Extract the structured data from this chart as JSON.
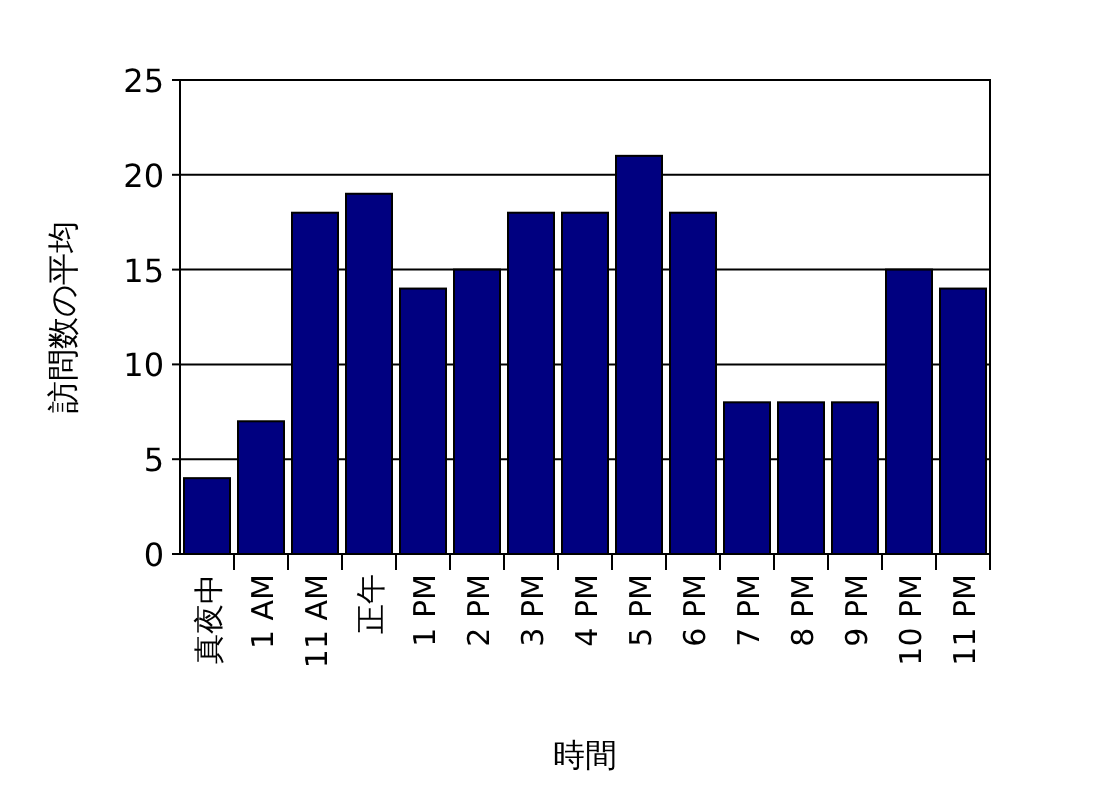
{
  "chart_data": {
    "type": "bar",
    "xlabel": "時間",
    "ylabel": "訪問数の平均",
    "categories": [
      "真夜中",
      "1 AM",
      "11 AM",
      "正午",
      "1 PM",
      "2 PM",
      "3 PM",
      "4 PM",
      "5 PM",
      "6 PM",
      "7 PM",
      "8 PM",
      "9 PM",
      "10 PM",
      "11 PM"
    ],
    "values": [
      4,
      7,
      18,
      19,
      14,
      15,
      18,
      18,
      21,
      18,
      8,
      8,
      8,
      15,
      14
    ],
    "color": "#000080",
    "ylim": [
      0,
      25
    ],
    "yticks": [
      0,
      5,
      10,
      15,
      20,
      25
    ],
    "grid": "y"
  }
}
